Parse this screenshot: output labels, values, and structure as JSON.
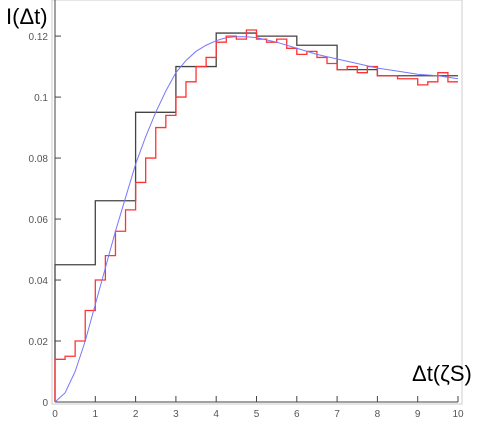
{
  "chart_data": {
    "type": "line",
    "ylabel": "I(Δt)",
    "xlabel": "Δt(ζS)",
    "xlim": [
      0,
      10
    ],
    "ylim": [
      0,
      0.13
    ],
    "x_ticks": [
      0,
      1,
      2,
      3,
      4,
      5,
      6,
      7,
      8,
      9,
      10
    ],
    "x_tick_labels": [
      "0",
      "1",
      "2",
      "3",
      "4",
      "5",
      "6",
      "7",
      "8",
      "9",
      "10"
    ],
    "y_ticks": [
      0,
      0.02,
      0.04,
      0.06,
      0.08,
      0.1,
      0.12
    ],
    "y_tick_labels": [
      "0",
      "0.02",
      "0.04",
      "0.06",
      "0.08",
      "0.1",
      "0.12"
    ],
    "grid": false,
    "series": [
      {
        "kind": "step",
        "color": "#444444",
        "bin_edges": [
          0,
          1,
          2,
          3,
          4,
          5,
          6,
          7,
          8,
          9,
          10
        ],
        "values": [
          0.045,
          0.066,
          0.095,
          0.11,
          0.121,
          0.12,
          0.117,
          0.109,
          0.107,
          0.107
        ]
      },
      {
        "kind": "step",
        "color": "#ff3333",
        "bin_edges": [
          0,
          0.25,
          0.5,
          0.75,
          1,
          1.25,
          1.5,
          1.75,
          2,
          2.25,
          2.5,
          2.75,
          3,
          3.25,
          3.5,
          3.75,
          4,
          4.25,
          4.5,
          4.75,
          5,
          5.25,
          5.5,
          5.75,
          6,
          6.25,
          6.5,
          6.75,
          7,
          7.25,
          7.5,
          7.75,
          8,
          8.25,
          8.5,
          8.75,
          9,
          9.25,
          9.5,
          9.75,
          10
        ],
        "values": [
          0.014,
          0.015,
          0.02,
          0.03,
          0.04,
          0.048,
          0.056,
          0.063,
          0.072,
          0.08,
          0.09,
          0.094,
          0.1,
          0.105,
          0.11,
          0.113,
          0.118,
          0.12,
          0.119,
          0.122,
          0.119,
          0.118,
          0.119,
          0.116,
          0.114,
          0.115,
          0.113,
          0.111,
          0.109,
          0.11,
          0.108,
          0.11,
          0.107,
          0.107,
          0.106,
          0.106,
          0.104,
          0.105,
          0.108,
          0.105
        ]
      },
      {
        "kind": "line",
        "color": "#7777ff",
        "x": [
          0,
          0.25,
          0.5,
          0.75,
          1,
          1.25,
          1.5,
          1.75,
          2,
          2.25,
          2.5,
          2.75,
          3,
          3.25,
          3.5,
          3.75,
          4,
          4.25,
          4.5,
          4.75,
          5,
          5.5,
          6,
          6.5,
          7,
          7.5,
          8,
          8.5,
          9,
          9.5,
          10
        ],
        "y": [
          0,
          0.003,
          0.01,
          0.02,
          0.032,
          0.044,
          0.056,
          0.067,
          0.078,
          0.087,
          0.095,
          0.102,
          0.108,
          0.112,
          0.115,
          0.117,
          0.1185,
          0.1195,
          0.1198,
          0.1198,
          0.1195,
          0.118,
          0.116,
          0.114,
          0.1125,
          0.111,
          0.1095,
          0.1085,
          0.1075,
          0.107,
          0.106
        ]
      }
    ]
  }
}
